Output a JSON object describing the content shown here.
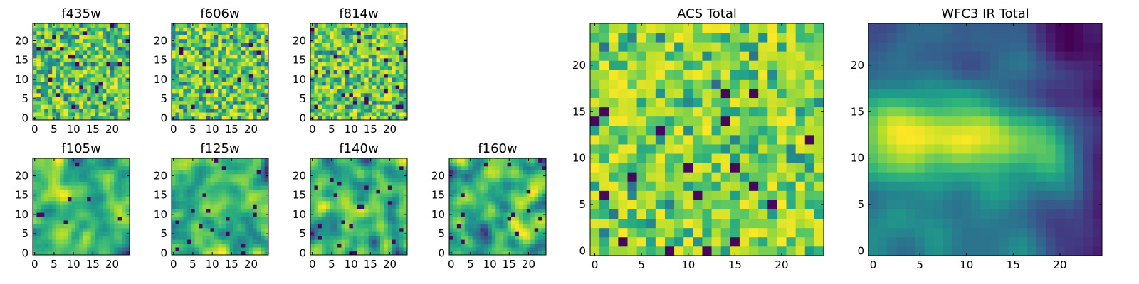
{
  "chart_data": [
    {
      "type": "heatmap",
      "title": "f435w",
      "size": 25,
      "xlim": [
        0,
        24
      ],
      "ylim": [
        0,
        24
      ],
      "xticks": [
        0,
        5,
        10,
        15,
        20
      ],
      "yticks": [
        0,
        5,
        10,
        15,
        20
      ],
      "colormap": "viridis",
      "texture": "noise",
      "seed": 11
    },
    {
      "type": "heatmap",
      "title": "f606w",
      "size": 25,
      "xlim": [
        0,
        24
      ],
      "ylim": [
        0,
        24
      ],
      "xticks": [
        0,
        5,
        10,
        15,
        20
      ],
      "yticks": [
        0,
        5,
        10,
        15,
        20
      ],
      "colormap": "viridis",
      "texture": "noise",
      "seed": 23
    },
    {
      "type": "heatmap",
      "title": "f814w",
      "size": 25,
      "xlim": [
        0,
        24
      ],
      "ylim": [
        0,
        24
      ],
      "xticks": [
        0,
        5,
        10,
        15,
        20
      ],
      "yticks": [
        0,
        5,
        10,
        15,
        20
      ],
      "colormap": "viridis",
      "texture": "noise",
      "seed": 37
    },
    {
      "type": "heatmap",
      "title": "f105w",
      "size": 25,
      "xlim": [
        0,
        24
      ],
      "ylim": [
        0,
        24
      ],
      "xticks": [
        0,
        5,
        10,
        15,
        20
      ],
      "yticks": [
        0,
        5,
        10,
        15,
        20
      ],
      "colormap": "viridis",
      "texture": "smooth",
      "seed": 41
    },
    {
      "type": "heatmap",
      "title": "f125w",
      "size": 25,
      "xlim": [
        0,
        24
      ],
      "ylim": [
        0,
        24
      ],
      "xticks": [
        0,
        5,
        10,
        15,
        20
      ],
      "yticks": [
        0,
        5,
        10,
        15,
        20
      ],
      "colormap": "viridis",
      "texture": "smooth",
      "seed": 53
    },
    {
      "type": "heatmap",
      "title": "f140w",
      "size": 25,
      "xlim": [
        0,
        24
      ],
      "ylim": [
        0,
        24
      ],
      "xticks": [
        0,
        5,
        10,
        15,
        20
      ],
      "yticks": [
        0,
        5,
        10,
        15,
        20
      ],
      "colormap": "viridis",
      "texture": "smooth",
      "seed": 67
    },
    {
      "type": "heatmap",
      "title": "f160w",
      "size": 25,
      "xlim": [
        0,
        24
      ],
      "ylim": [
        0,
        24
      ],
      "xticks": [
        0,
        5,
        10,
        15,
        20
      ],
      "yticks": [
        0,
        5,
        10,
        15,
        20
      ],
      "colormap": "viridis",
      "texture": "smooth",
      "seed": 79
    },
    {
      "type": "heatmap",
      "title": "ACS Total",
      "size": 25,
      "xlim": [
        0,
        24
      ],
      "ylim": [
        0,
        24
      ],
      "xticks": [
        0,
        5,
        10,
        15,
        20
      ],
      "yticks": [
        0,
        5,
        10,
        15,
        20
      ],
      "colormap": "viridis",
      "texture": "noise-bright",
      "seed": 83
    },
    {
      "type": "heatmap",
      "title": "WFC3 IR Total",
      "size": 25,
      "xlim": [
        0,
        24
      ],
      "ylim": [
        0,
        24
      ],
      "xticks": [
        0,
        5,
        10,
        15,
        20
      ],
      "yticks": [
        0,
        5,
        10,
        15,
        20
      ],
      "colormap": "viridis",
      "texture": "ir-total",
      "seed": 97
    }
  ]
}
